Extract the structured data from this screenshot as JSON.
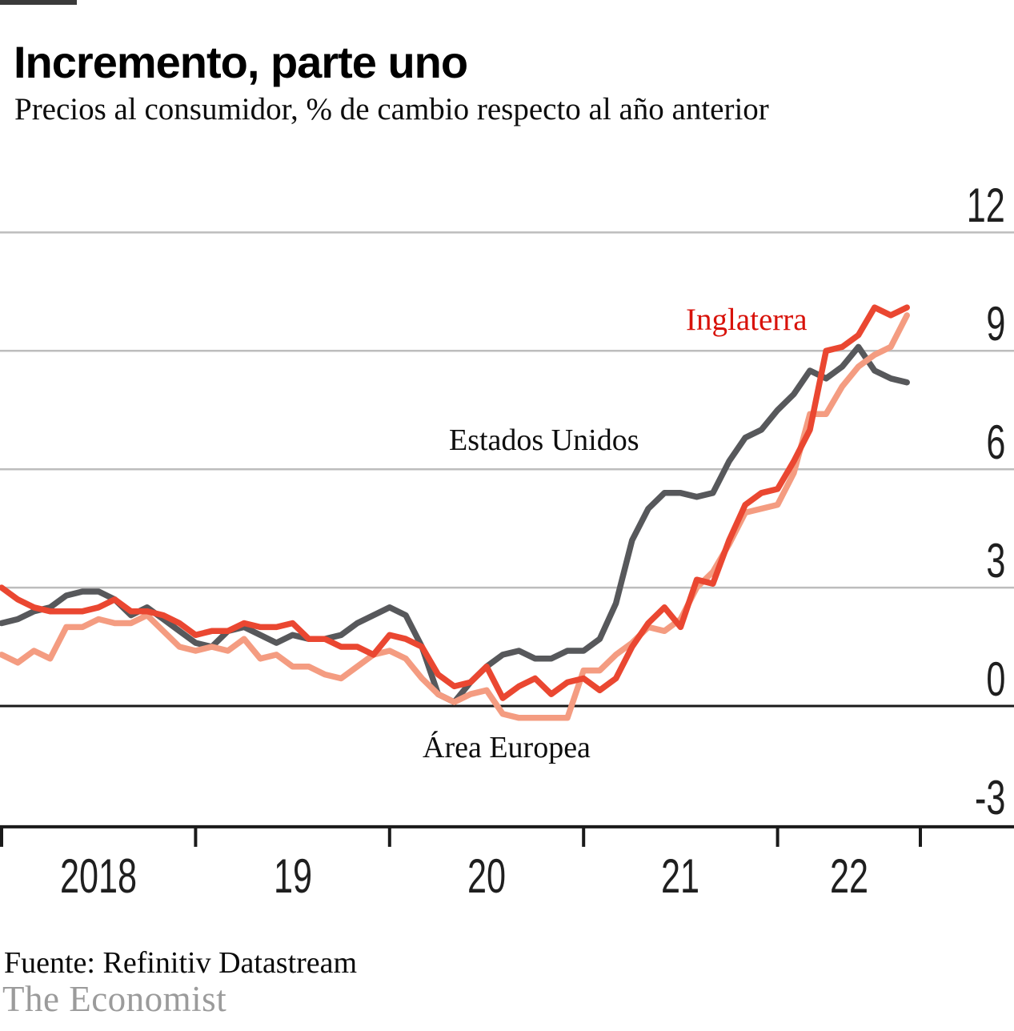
{
  "brand_bar": {
    "color": "#3a3a3a"
  },
  "chart_data": {
    "type": "line",
    "title": "Incremento, parte uno",
    "subtitle": "Precios al consumidor, % de cambio respecto al año anterior",
    "x_start": "2018-01",
    "x_end": "2022-09",
    "x_frequency": "monthly",
    "x_tick_labels": [
      "2018",
      "19",
      "20",
      "21",
      "22"
    ],
    "y_ticks": [
      12,
      9,
      6,
      3,
      0,
      -3
    ],
    "ylim": [
      -3,
      12
    ],
    "grid": true,
    "grid_color": "#bdbdbd",
    "axis_color": "#1a1a1a",
    "legend_position": "inline-labels",
    "series": [
      {
        "name": "Estados Unidos",
        "color": "#57585b",
        "label_color": "#0e0e0e",
        "values": [
          2.1,
          2.2,
          2.4,
          2.5,
          2.8,
          2.9,
          2.9,
          2.7,
          2.3,
          2.5,
          2.2,
          1.9,
          1.6,
          1.5,
          1.9,
          2.0,
          1.8,
          1.6,
          1.8,
          1.7,
          1.7,
          1.8,
          2.1,
          2.3,
          2.5,
          2.3,
          1.5,
          0.3,
          0.1,
          0.6,
          1.0,
          1.3,
          1.4,
          1.2,
          1.2,
          1.4,
          1.4,
          1.7,
          2.6,
          4.2,
          5.0,
          5.4,
          5.4,
          5.3,
          5.4,
          6.2,
          6.8,
          7.0,
          7.5,
          7.9,
          8.5,
          8.3,
          8.6,
          9.1,
          8.5,
          8.3,
          8.2
        ]
      },
      {
        "name": "Área Europea",
        "color": "#f49c81",
        "label_color": "#0e0e0e",
        "values": [
          1.3,
          1.1,
          1.4,
          1.2,
          2.0,
          2.0,
          2.2,
          2.1,
          2.1,
          2.3,
          1.9,
          1.5,
          1.4,
          1.5,
          1.4,
          1.7,
          1.2,
          1.3,
          1.0,
          1.0,
          0.8,
          0.7,
          1.0,
          1.3,
          1.4,
          1.2,
          0.7,
          0.3,
          0.1,
          0.3,
          0.4,
          -0.2,
          -0.3,
          -0.3,
          -0.3,
          -0.3,
          0.9,
          0.9,
          1.3,
          1.6,
          2.0,
          1.9,
          2.2,
          3.0,
          3.4,
          4.1,
          4.9,
          5.0,
          5.1,
          5.9,
          7.4,
          7.4,
          8.1,
          8.6,
          8.9,
          9.1,
          9.9
        ]
      },
      {
        "name": "Inglaterra",
        "color": "#ea4731",
        "label_color": "#d8120a",
        "values": [
          3.0,
          2.7,
          2.5,
          2.4,
          2.4,
          2.4,
          2.5,
          2.7,
          2.4,
          2.4,
          2.3,
          2.1,
          1.8,
          1.9,
          1.9,
          2.1,
          2.0,
          2.0,
          2.1,
          1.7,
          1.7,
          1.5,
          1.5,
          1.3,
          1.8,
          1.7,
          1.5,
          0.8,
          0.5,
          0.6,
          1.0,
          0.2,
          0.5,
          0.7,
          0.3,
          0.6,
          0.7,
          0.4,
          0.7,
          1.5,
          2.1,
          2.5,
          2.0,
          3.2,
          3.1,
          4.2,
          5.1,
          5.4,
          5.5,
          6.2,
          7.0,
          9.0,
          9.1,
          9.4,
          10.1,
          9.9,
          10.1
        ]
      }
    ]
  },
  "footer": {
    "source": "Fuente: Refinitiv Datastream",
    "brand": "The Economist"
  }
}
